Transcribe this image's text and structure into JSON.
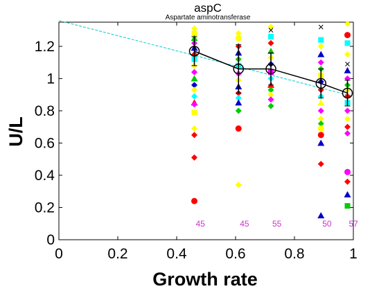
{
  "chart_data": {
    "type": "scatter",
    "title": "aspC",
    "subtitle": "Aspartate aminotransferase",
    "xlabel": "Growth rate",
    "ylabel": "U/L",
    "xlim": [
      0,
      1
    ],
    "ylim": [
      0,
      1.35
    ],
    "grid": false,
    "x_ticks": [
      "0",
      "0.2",
      "0.4",
      "0.6",
      "0.8",
      "1"
    ],
    "y_ticks": [
      "0",
      "0.2",
      "0.4",
      "0.6",
      "0.8",
      "1",
      "1.2"
    ],
    "trend_line": {
      "color": "#00cccc",
      "x": [
        0,
        1
      ],
      "y": [
        1.36,
        0.89
      ]
    },
    "mean_series": {
      "x": [
        0.46,
        0.61,
        0.72,
        0.89,
        0.98
      ],
      "y": [
        1.17,
        1.06,
        1.06,
        0.97,
        0.91
      ],
      "err": [
        0.09,
        0.15,
        0.1,
        0.09,
        0.08
      ]
    },
    "counts": [
      {
        "x": 0.46,
        "label": "45"
      },
      {
        "x": 0.61,
        "label": "45"
      },
      {
        "x": 0.72,
        "label": "55"
      },
      {
        "x": 0.89,
        "label": "50"
      },
      {
        "x": 0.98,
        "label": "57"
      }
    ],
    "count_color": "#cc33cc",
    "points": [
      {
        "x": 0.46,
        "y": 1.31,
        "shape": "diamond",
        "color": "#ffff00"
      },
      {
        "x": 0.46,
        "y": 1.28,
        "shape": "square",
        "color": "#ffff00"
      },
      {
        "x": 0.46,
        "y": 1.25,
        "shape": "triangle",
        "color": "#00cc00"
      },
      {
        "x": 0.46,
        "y": 1.22,
        "shape": "diamond",
        "color": "#ff00ff"
      },
      {
        "x": 0.46,
        "y": 1.19,
        "shape": "triangle",
        "color": "#0000cc"
      },
      {
        "x": 0.46,
        "y": 1.15,
        "shape": "diamond",
        "color": "#ff0000"
      },
      {
        "x": 0.46,
        "y": 1.12,
        "shape": "square",
        "color": "#00ffff"
      },
      {
        "x": 0.46,
        "y": 1.08,
        "shape": "diamond",
        "color": "#ffff00"
      },
      {
        "x": 0.46,
        "y": 1.04,
        "shape": "diamond",
        "color": "#ff00ff"
      },
      {
        "x": 0.46,
        "y": 1.0,
        "shape": "triangle",
        "color": "#00cc00"
      },
      {
        "x": 0.46,
        "y": 0.96,
        "shape": "diamond",
        "color": "#0000cc"
      },
      {
        "x": 0.46,
        "y": 0.93,
        "shape": "diamond",
        "color": "#ffff00"
      },
      {
        "x": 0.46,
        "y": 0.89,
        "shape": "diamond",
        "color": "#00ffff"
      },
      {
        "x": 0.46,
        "y": 0.85,
        "shape": "triangle",
        "color": "#ff0000"
      },
      {
        "x": 0.46,
        "y": 0.84,
        "shape": "diamond",
        "color": "#ff00ff"
      },
      {
        "x": 0.46,
        "y": 0.79,
        "shape": "square",
        "color": "#ffff00"
      },
      {
        "x": 0.46,
        "y": 0.69,
        "shape": "diamond",
        "color": "#ffff00"
      },
      {
        "x": 0.46,
        "y": 0.65,
        "shape": "diamond",
        "color": "#ff0000"
      },
      {
        "x": 0.46,
        "y": 0.51,
        "shape": "diamond",
        "color": "#ff0000"
      },
      {
        "x": 0.46,
        "y": 0.24,
        "shape": "circle",
        "color": "#ff0000"
      },
      {
        "x": 0.61,
        "y": 1.28,
        "shape": "diamond",
        "color": "#ffff00"
      },
      {
        "x": 0.61,
        "y": 1.25,
        "shape": "circle",
        "color": "#ffff00"
      },
      {
        "x": 0.61,
        "y": 1.2,
        "shape": "diamond",
        "color": "#ff0000"
      },
      {
        "x": 0.61,
        "y": 1.16,
        "shape": "triangle",
        "color": "#0000cc"
      },
      {
        "x": 0.61,
        "y": 1.12,
        "shape": "diamond",
        "color": "#00cc00"
      },
      {
        "x": 0.61,
        "y": 1.08,
        "shape": "square",
        "color": "#00ffff"
      },
      {
        "x": 0.61,
        "y": 1.03,
        "shape": "diamond",
        "color": "#ff00ff"
      },
      {
        "x": 0.61,
        "y": 0.99,
        "shape": "diamond",
        "color": "#ffff00"
      },
      {
        "x": 0.61,
        "y": 0.95,
        "shape": "triangle",
        "color": "#0000cc"
      },
      {
        "x": 0.61,
        "y": 0.91,
        "shape": "diamond",
        "color": "#ff0000"
      },
      {
        "x": 0.61,
        "y": 0.88,
        "shape": "diamond",
        "color": "#00ffff"
      },
      {
        "x": 0.61,
        "y": 0.85,
        "shape": "triangle",
        "color": "#0000cc"
      },
      {
        "x": 0.61,
        "y": 0.8,
        "shape": "diamond",
        "color": "#00cc00"
      },
      {
        "x": 0.61,
        "y": 0.69,
        "shape": "circle",
        "color": "#ff0000"
      },
      {
        "x": 0.61,
        "y": 0.34,
        "shape": "diamond",
        "color": "#ffff00"
      },
      {
        "x": 0.72,
        "y": 1.32,
        "shape": "diamond",
        "color": "#ffff00"
      },
      {
        "x": 0.72,
        "y": 1.3,
        "shape": "cross",
        "color": "#000000"
      },
      {
        "x": 0.72,
        "y": 1.26,
        "shape": "square",
        "color": "#00ffff"
      },
      {
        "x": 0.72,
        "y": 1.22,
        "shape": "diamond",
        "color": "#ff0000"
      },
      {
        "x": 0.72,
        "y": 1.17,
        "shape": "triangle",
        "color": "#00cc00"
      },
      {
        "x": 0.72,
        "y": 1.13,
        "shape": "diamond",
        "color": "#ffff00"
      },
      {
        "x": 0.72,
        "y": 1.09,
        "shape": "diamond",
        "color": "#0000cc"
      },
      {
        "x": 0.72,
        "y": 1.04,
        "shape": "square",
        "color": "#ff00ff"
      },
      {
        "x": 0.72,
        "y": 1.0,
        "shape": "diamond",
        "color": "#00ffff"
      },
      {
        "x": 0.72,
        "y": 0.96,
        "shape": "triangle",
        "color": "#ff0000"
      },
      {
        "x": 0.72,
        "y": 0.93,
        "shape": "diamond",
        "color": "#00cc00"
      },
      {
        "x": 0.72,
        "y": 0.9,
        "shape": "diamond",
        "color": "#ffff00"
      },
      {
        "x": 0.72,
        "y": 0.87,
        "shape": "diamond",
        "color": "#ff00ff"
      },
      {
        "x": 0.72,
        "y": 0.83,
        "shape": "diamond",
        "color": "#00cc00"
      },
      {
        "x": 0.89,
        "y": 1.32,
        "shape": "cross",
        "color": "#000000"
      },
      {
        "x": 0.89,
        "y": 1.24,
        "shape": "square",
        "color": "#00ffff"
      },
      {
        "x": 0.89,
        "y": 1.2,
        "shape": "diamond",
        "color": "#ffff00"
      },
      {
        "x": 0.89,
        "y": 1.15,
        "shape": "triangle",
        "color": "#0000cc"
      },
      {
        "x": 0.89,
        "y": 1.1,
        "shape": "diamond",
        "color": "#ff00ff"
      },
      {
        "x": 0.89,
        "y": 1.06,
        "shape": "diamond",
        "color": "#00cc00"
      },
      {
        "x": 0.89,
        "y": 1.02,
        "shape": "square",
        "color": "#ffff00"
      },
      {
        "x": 0.89,
        "y": 0.98,
        "shape": "diamond",
        "color": "#0000cc"
      },
      {
        "x": 0.89,
        "y": 0.93,
        "shape": "diamond",
        "color": "#ff0000"
      },
      {
        "x": 0.89,
        "y": 0.89,
        "shape": "diamond",
        "color": "#00ffff"
      },
      {
        "x": 0.89,
        "y": 0.85,
        "shape": "triangle",
        "color": "#ffff00"
      },
      {
        "x": 0.89,
        "y": 0.8,
        "shape": "diamond",
        "color": "#ff00ff"
      },
      {
        "x": 0.89,
        "y": 0.75,
        "shape": "diamond",
        "color": "#ffff00"
      },
      {
        "x": 0.89,
        "y": 0.72,
        "shape": "diamond",
        "color": "#00cc00"
      },
      {
        "x": 0.89,
        "y": 0.69,
        "shape": "circle",
        "color": "#ffff00"
      },
      {
        "x": 0.89,
        "y": 0.65,
        "shape": "circle",
        "color": "#ff0000"
      },
      {
        "x": 0.89,
        "y": 0.6,
        "shape": "triangle",
        "color": "#0000cc"
      },
      {
        "x": 0.89,
        "y": 0.47,
        "shape": "diamond",
        "color": "#ff0000"
      },
      {
        "x": 0.89,
        "y": 0.15,
        "shape": "triangle",
        "color": "#0000cc"
      },
      {
        "x": 0.98,
        "y": 1.34,
        "shape": "diamond",
        "color": "#ffff00"
      },
      {
        "x": 0.98,
        "y": 1.27,
        "shape": "circle",
        "color": "#ff0000"
      },
      {
        "x": 0.98,
        "y": 1.22,
        "shape": "square",
        "color": "#00ffff"
      },
      {
        "x": 0.98,
        "y": 1.15,
        "shape": "diamond",
        "color": "#ffff00"
      },
      {
        "x": 0.98,
        "y": 1.09,
        "shape": "cross",
        "color": "#000000"
      },
      {
        "x": 0.98,
        "y": 1.05,
        "shape": "triangle",
        "color": "#0000cc"
      },
      {
        "x": 0.98,
        "y": 1.0,
        "shape": "diamond",
        "color": "#ff00ff"
      },
      {
        "x": 0.98,
        "y": 0.96,
        "shape": "diamond",
        "color": "#00cc00"
      },
      {
        "x": 0.98,
        "y": 0.93,
        "shape": "diamond",
        "color": "#ffff00"
      },
      {
        "x": 0.98,
        "y": 0.89,
        "shape": "diamond",
        "color": "#ff0000"
      },
      {
        "x": 0.98,
        "y": 0.85,
        "shape": "square",
        "color": "#00ffff"
      },
      {
        "x": 0.98,
        "y": 0.8,
        "shape": "diamond",
        "color": "#ff00ff"
      },
      {
        "x": 0.98,
        "y": 0.75,
        "shape": "diamond",
        "color": "#ffff00"
      },
      {
        "x": 0.98,
        "y": 0.7,
        "shape": "diamond",
        "color": "#ff0000"
      },
      {
        "x": 0.98,
        "y": 0.66,
        "shape": "diamond",
        "color": "#ff00ff"
      },
      {
        "x": 0.98,
        "y": 0.42,
        "shape": "circle",
        "color": "#ff00ff"
      },
      {
        "x": 0.98,
        "y": 0.36,
        "shape": "diamond",
        "color": "#ff0000"
      },
      {
        "x": 0.98,
        "y": 0.28,
        "shape": "triangle",
        "color": "#0000cc"
      },
      {
        "x": 0.98,
        "y": 0.21,
        "shape": "square",
        "color": "#00cc00"
      }
    ]
  }
}
